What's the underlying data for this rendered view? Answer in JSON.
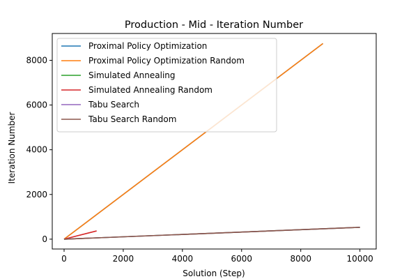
{
  "chart_data": {
    "type": "line",
    "title": "Production - Mid - Iteration Number",
    "xlabel": "Solution (Step)",
    "ylabel": "Iteration Number",
    "xlim": [
      -400,
      10550
    ],
    "ylim": [
      -440,
      9200
    ],
    "xticks": [
      0,
      2000,
      4000,
      6000,
      8000,
      10000
    ],
    "yticks": [
      0,
      2000,
      4000,
      6000,
      8000
    ],
    "grid": false,
    "legend_position": "top-left",
    "series": [
      {
        "name": "Proximal Policy Optimization",
        "color": "#1f77b4",
        "x": [
          0,
          8750
        ],
        "y": [
          0,
          8750
        ]
      },
      {
        "name": "Proximal Policy Optimization Random",
        "color": "#ff7f0e",
        "x": [
          0,
          8750
        ],
        "y": [
          0,
          8750
        ]
      },
      {
        "name": "Simulated Annealing",
        "color": "#2ca02c",
        "x": [
          0,
          10000
        ],
        "y": [
          0,
          530
        ]
      },
      {
        "name": "Simulated Annealing Random",
        "color": "#d62728",
        "x": [
          0,
          1100
        ],
        "y": [
          0,
          370
        ]
      },
      {
        "name": "Tabu Search",
        "color": "#9467bd",
        "x": [
          0,
          10000
        ],
        "y": [
          0,
          530
        ]
      },
      {
        "name": "Tabu Search Random",
        "color": "#8c564b",
        "x": [
          0,
          10000
        ],
        "y": [
          0,
          530
        ]
      }
    ]
  }
}
